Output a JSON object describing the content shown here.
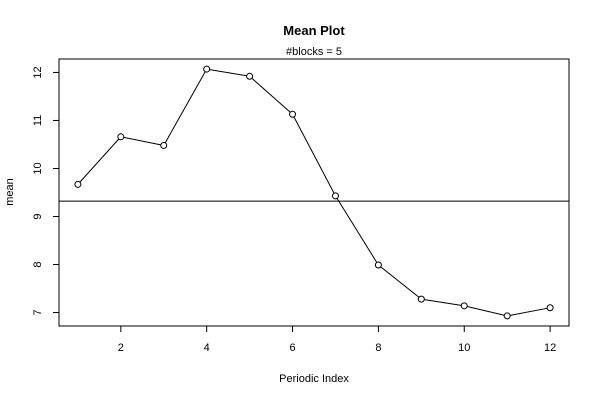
{
  "chart_data": {
    "type": "line",
    "title": "Mean Plot",
    "subtitle": "#blocks =  5",
    "xlabel": "Periodic Index",
    "ylabel": "mean",
    "x": [
      1,
      2,
      3,
      4,
      5,
      6,
      7,
      8,
      9,
      10,
      11,
      12
    ],
    "series": [
      {
        "values": [
          9.67,
          10.66,
          10.48,
          12.07,
          11.92,
          11.13,
          9.43,
          7.99,
          7.28,
          7.14,
          6.93,
          7.1
        ]
      }
    ],
    "reference_line": {
      "y": 9.32
    },
    "xlim": [
      0.56,
      12.44
    ],
    "ylim": [
      6.72,
      12.28
    ],
    "xticks": [
      2,
      4,
      6,
      8,
      10,
      12
    ],
    "xtick_labels": [
      "2",
      "4",
      "6",
      "8",
      "10",
      "12"
    ],
    "yticks": [
      7,
      8,
      9,
      10,
      11,
      12
    ],
    "ytick_labels": [
      "7",
      "8",
      "9",
      "10",
      "11",
      "12"
    ],
    "grid": false,
    "marker": "open-circle",
    "colors": {
      "line": "#000000",
      "background": "#ffffff"
    }
  }
}
